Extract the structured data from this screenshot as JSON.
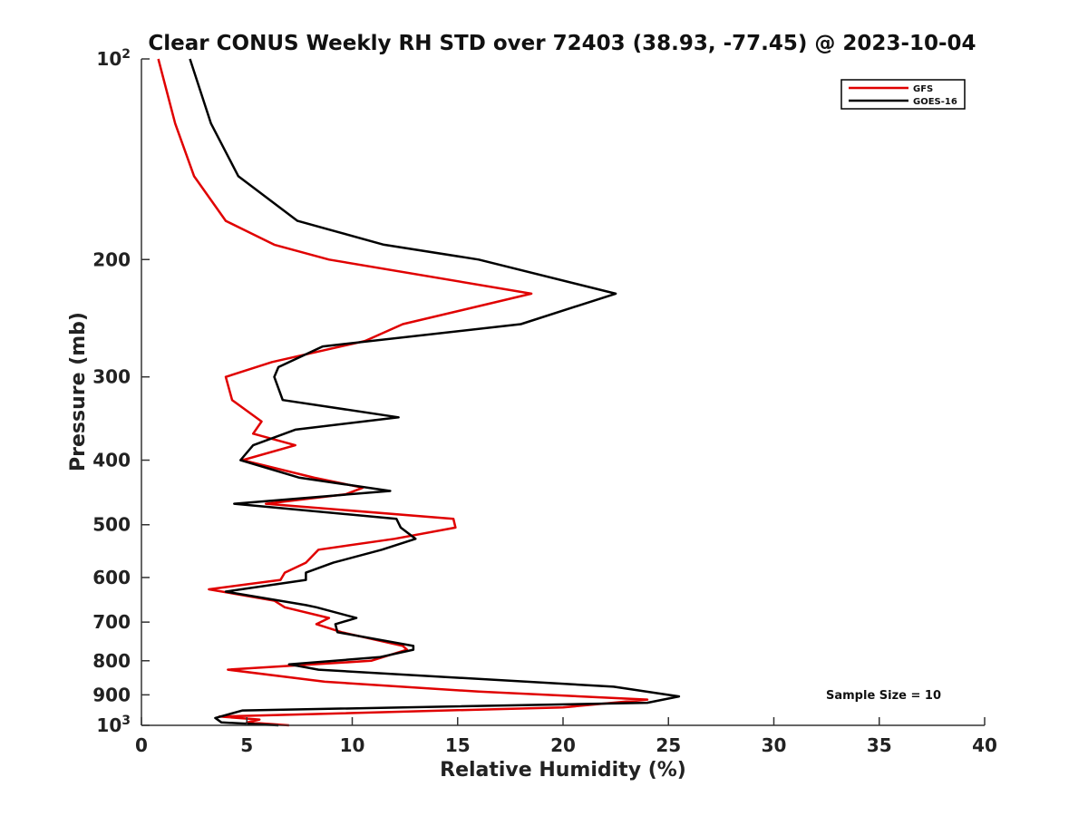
{
  "chart_data": {
    "type": "line",
    "title": "Clear CONUS Weekly RH STD over 72403 (38.93, -77.45) @ 2023-10-04",
    "xlabel": "Relative Humidity (%)",
    "ylabel": "Pressure (mb)",
    "xlim": [
      0,
      40
    ],
    "ylim": [
      100,
      1000
    ],
    "y_scale": "log",
    "y_reversed": true,
    "grid": false,
    "legend_position": "top-right",
    "x_ticks": [
      "0",
      "5",
      "10",
      "15",
      "20",
      "25",
      "30",
      "35",
      "40"
    ],
    "y_ticks": [
      {
        "value": 100,
        "base": "10",
        "exp": "2"
      },
      {
        "value": 200,
        "label": "200"
      },
      {
        "value": 300,
        "label": "300"
      },
      {
        "value": 400,
        "label": "400"
      },
      {
        "value": 500,
        "label": "500"
      },
      {
        "value": 600,
        "label": "600"
      },
      {
        "value": 700,
        "label": "700"
      },
      {
        "value": 800,
        "label": "800"
      },
      {
        "value": 900,
        "label": "900"
      },
      {
        "value": 1000,
        "base": "10",
        "exp": "3"
      }
    ],
    "annotation": "Sample Size = 10",
    "series": [
      {
        "name": "GFS",
        "color": "#e00000",
        "points": [
          [
            0.8,
            100
          ],
          [
            1.6,
            125
          ],
          [
            2.5,
            150
          ],
          [
            4.0,
            175
          ],
          [
            6.3,
            190
          ],
          [
            8.9,
            200
          ],
          [
            18.5,
            225
          ],
          [
            12.4,
            250
          ],
          [
            10.6,
            265
          ],
          [
            6.2,
            285
          ],
          [
            4.0,
            300
          ],
          [
            4.3,
            325
          ],
          [
            5.7,
            350
          ],
          [
            5.3,
            365
          ],
          [
            7.3,
            380
          ],
          [
            4.8,
            400
          ],
          [
            8.2,
            425
          ],
          [
            10.5,
            440
          ],
          [
            9.7,
            450
          ],
          [
            5.9,
            465
          ],
          [
            14.8,
            490
          ],
          [
            14.9,
            505
          ],
          [
            12.0,
            525
          ],
          [
            8.4,
            545
          ],
          [
            7.8,
            570
          ],
          [
            6.8,
            590
          ],
          [
            6.6,
            605
          ],
          [
            3.2,
            625
          ],
          [
            6.3,
            650
          ],
          [
            6.8,
            665
          ],
          [
            8.9,
            690
          ],
          [
            8.3,
            705
          ],
          [
            9.5,
            725
          ],
          [
            12.4,
            760
          ],
          [
            12.6,
            770
          ],
          [
            10.9,
            800
          ],
          [
            4.1,
            825
          ],
          [
            8.7,
            860
          ],
          [
            16.0,
            890
          ],
          [
            24.0,
            915
          ],
          [
            20.0,
            940
          ],
          [
            3.7,
            970
          ],
          [
            5.6,
            980
          ],
          [
            5.0,
            990
          ],
          [
            7.0,
            1000
          ]
        ]
      },
      {
        "name": "GOES-16",
        "color": "#000000",
        "points": [
          [
            2.3,
            100
          ],
          [
            3.3,
            125
          ],
          [
            4.6,
            150
          ],
          [
            7.4,
            175
          ],
          [
            11.5,
            190
          ],
          [
            16.0,
            200
          ],
          [
            22.5,
            225
          ],
          [
            18.0,
            250
          ],
          [
            8.6,
            270
          ],
          [
            6.5,
            290
          ],
          [
            6.3,
            300
          ],
          [
            6.7,
            325
          ],
          [
            12.2,
            345
          ],
          [
            7.3,
            360
          ],
          [
            5.3,
            380
          ],
          [
            4.7,
            400
          ],
          [
            7.5,
            425
          ],
          [
            11.8,
            445
          ],
          [
            4.4,
            465
          ],
          [
            12.1,
            490
          ],
          [
            12.3,
            505
          ],
          [
            13.0,
            525
          ],
          [
            11.4,
            545
          ],
          [
            9.1,
            570
          ],
          [
            7.8,
            590
          ],
          [
            7.8,
            605
          ],
          [
            4.0,
            630
          ],
          [
            7.8,
            660
          ],
          [
            8.3,
            665
          ],
          [
            10.2,
            690
          ],
          [
            9.2,
            705
          ],
          [
            9.3,
            725
          ],
          [
            12.9,
            760
          ],
          [
            12.9,
            770
          ],
          [
            11.3,
            790
          ],
          [
            7.0,
            810
          ],
          [
            8.4,
            825
          ],
          [
            22.4,
            875
          ],
          [
            25.5,
            905
          ],
          [
            24.0,
            925
          ],
          [
            4.8,
            950
          ],
          [
            3.5,
            975
          ],
          [
            3.8,
            990
          ],
          [
            6.5,
            1000
          ]
        ]
      }
    ]
  }
}
